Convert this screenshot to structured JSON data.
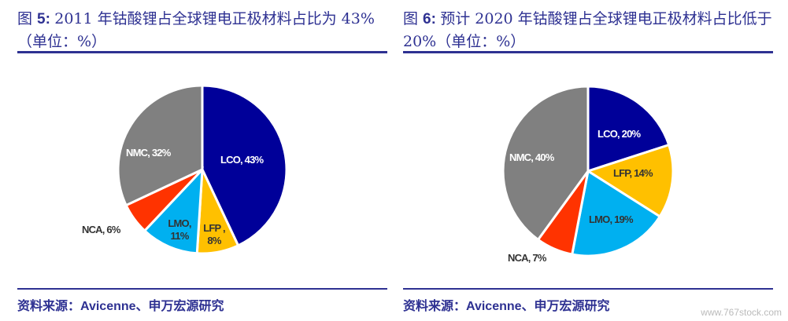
{
  "chart_data": [
    {
      "type": "pie",
      "title_prefix": "图 ",
      "title_num": "5:",
      "title": "2011 年钴酸锂占全球锂电正极材料占比为 43%",
      "subtitle": "（单位：%）",
      "source": "资料来源：Avicenne、申万宏源研究",
      "slices": [
        {
          "label": "LCO, 43%",
          "name": "LCO",
          "value": 43,
          "color": "#000099"
        },
        {
          "label": "LFP , 8%",
          "name": "LFP",
          "value": 8,
          "color": "#ffc000"
        },
        {
          "label": "LMO, 11%",
          "name": "LMO",
          "value": 11,
          "color": "#00b0f0"
        },
        {
          "label": "NCA, 6%",
          "name": "NCA",
          "value": 6,
          "color": "#ff3300"
        },
        {
          "label": "NMC, 32%",
          "name": "NMC",
          "value": 32,
          "color": "#808080"
        }
      ]
    },
    {
      "type": "pie",
      "title_prefix": "图 ",
      "title_num": "6:",
      "title": "预计 2020 年钴酸锂占全球锂电正极材料占比低于 20%",
      "subtitle": "（单位：%）",
      "source": "资料来源：Avicenne、申万宏源研究",
      "slices": [
        {
          "label": "LCO, 20%",
          "name": "LCO",
          "value": 20,
          "color": "#000099"
        },
        {
          "label": "LFP, 14%",
          "name": "LFP",
          "value": 14,
          "color": "#ffc000"
        },
        {
          "label": "LMO, 19%",
          "name": "LMO",
          "value": 19,
          "color": "#00b0f0"
        },
        {
          "label": "NCA, 7%",
          "name": "NCA",
          "value": 7,
          "color": "#ff3300"
        },
        {
          "label": "NMC, 40%",
          "name": "NMC",
          "value": 40,
          "color": "#808080"
        }
      ]
    }
  ],
  "watermark": "www.767stock.com"
}
